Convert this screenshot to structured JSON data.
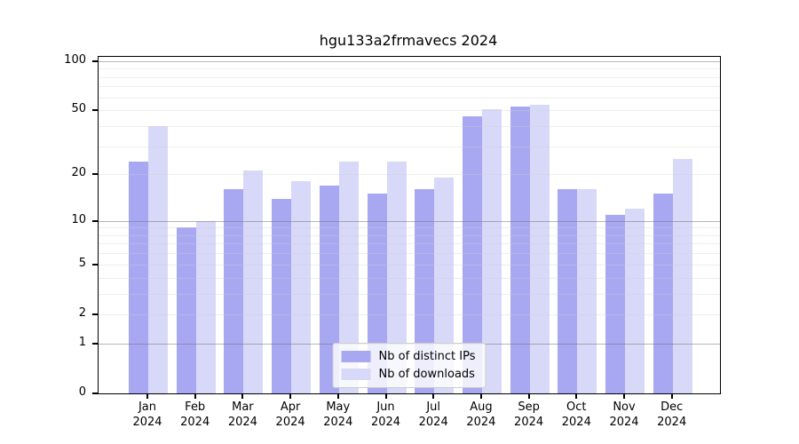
{
  "chart_data": {
    "type": "bar",
    "title": "hgu133a2frmavecs 2024",
    "categories": [
      "Jan 2024",
      "Feb 2024",
      "Mar 2024",
      "Apr 2024",
      "May 2024",
      "Jun 2024",
      "Jul 2024",
      "Aug 2024",
      "Sep 2024",
      "Oct 2024",
      "Nov 2024",
      "Dec 2024"
    ],
    "month_labels": [
      "Jan",
      "Feb",
      "Mar",
      "Apr",
      "May",
      "Jun",
      "Jul",
      "Aug",
      "Sep",
      "Oct",
      "Nov",
      "Dec"
    ],
    "year_label": "2024",
    "series": [
      {
        "name": "Nb of distinct IPs",
        "color": "#a8a8f2",
        "values": [
          24,
          9,
          16,
          14,
          17,
          15,
          16,
          46,
          53,
          16,
          11,
          15
        ]
      },
      {
        "name": "Nb of downloads",
        "color": "#d8d8f8",
        "values": [
          40,
          10,
          21,
          18,
          24,
          24,
          19,
          51,
          54,
          16,
          12,
          25
        ]
      }
    ],
    "yscale": "log1p",
    "ylim": [
      0,
      106
    ],
    "ytick_values": [
      100,
      50,
      20,
      10,
      5,
      2,
      1,
      0
    ],
    "ytick_labels": [
      "100",
      "50",
      "20",
      "10",
      "5",
      "2",
      "1",
      "0"
    ],
    "grid_minor_values": [
      2,
      3,
      4,
      5,
      6,
      7,
      8,
      9,
      20,
      30,
      40,
      50,
      60,
      70,
      80,
      90
    ],
    "grid_decade_values": [
      1,
      10,
      100
    ],
    "grid": true,
    "legend_position": "lower center"
  },
  "colors": {
    "bar_distinct_ips": "#a8a8f2",
    "bar_downloads": "#d8d8f8",
    "axis": "#000000",
    "grid_decade": "#9b9b9b",
    "grid_minor": "#ececec",
    "legend_border": "#cccccc"
  }
}
